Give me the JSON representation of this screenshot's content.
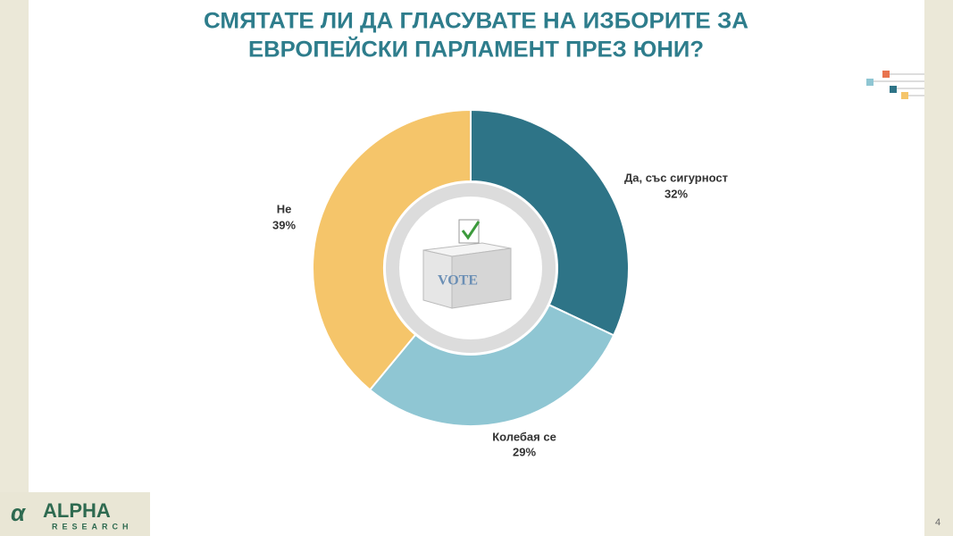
{
  "chart_data": {
    "type": "donut",
    "title": [
      "СМЯТАТЕ ЛИ ДА ГЛАСУВАТЕ НА ИЗБОРИТЕ ЗА",
      "ЕВРОПЕЙСКИ ПАРЛАМЕНТ ПРЕЗ ЮНИ?"
    ],
    "categories": [
      "Да, със сигурност",
      "Колебая се",
      "Не"
    ],
    "values": [
      32,
      29,
      39
    ],
    "value_labels": [
      "32%",
      "29%",
      "39%"
    ],
    "colors": [
      "#2e7487",
      "#8fc6d3",
      "#f5c56a"
    ]
  },
  "logo": {
    "name": "ALPHA",
    "sub": "RESEARCH"
  },
  "page_number": "4"
}
